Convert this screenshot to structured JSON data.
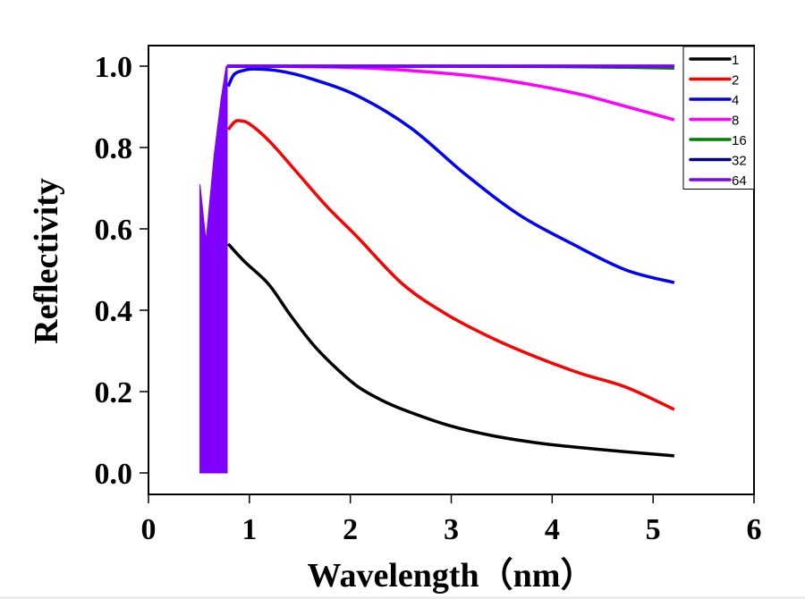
{
  "chart_data": {
    "type": "line",
    "title": "",
    "xlabel": "Wavelength（nm）",
    "ylabel": "Reflectivity",
    "xlim": [
      0,
      6
    ],
    "ylim": [
      -0.05,
      1.05
    ],
    "xticks": [
      0,
      1,
      2,
      3,
      4,
      5,
      6
    ],
    "xtick_labels": [
      "0",
      "1",
      "2",
      "3",
      "4",
      "5",
      "6"
    ],
    "yticks": [
      0.0,
      0.2,
      0.4,
      0.6,
      0.8,
      1.0
    ],
    "ytick_labels": [
      "0.0",
      "0.2",
      "0.4",
      "0.6",
      "0.8",
      "1.0"
    ],
    "grid": false,
    "legend_position": "top-right",
    "oscillation_region": {
      "description": "dense oscillating fill from 0 up to envelope for all series (topmost 64 visible)",
      "x_range": [
        0.51,
        0.78
      ],
      "envelope": [
        [
          0.51,
          0.71
        ],
        [
          0.57,
          0.57
        ],
        [
          0.65,
          0.78
        ],
        [
          0.72,
          0.92
        ],
        [
          0.77,
          1.0
        ],
        [
          0.78,
          1.0
        ]
      ],
      "color": "#8000ff"
    },
    "series": [
      {
        "name": "1",
        "color": "#000000",
        "x": [
          0.79,
          0.95,
          1.19,
          1.4,
          1.63,
          1.85,
          2.07,
          2.3,
          2.52,
          2.96,
          3.4,
          3.85,
          4.29,
          4.73,
          5.21
        ],
        "y": [
          0.563,
          0.52,
          0.464,
          0.39,
          0.316,
          0.26,
          0.213,
          0.18,
          0.156,
          0.118,
          0.092,
          0.074,
          0.062,
          0.052,
          0.042
        ]
      },
      {
        "name": "2",
        "color": "#ff0000",
        "x": [
          0.79,
          0.85,
          0.9,
          1.0,
          1.2,
          1.45,
          1.76,
          2.07,
          2.52,
          2.96,
          3.4,
          3.85,
          4.29,
          4.73,
          5.21
        ],
        "y": [
          0.844,
          0.862,
          0.866,
          0.858,
          0.815,
          0.745,
          0.657,
          0.58,
          0.464,
          0.389,
          0.332,
          0.284,
          0.244,
          0.211,
          0.156
        ]
      },
      {
        "name": "4",
        "color": "#0000ff",
        "x": [
          0.79,
          0.85,
          0.95,
          1.05,
          1.3,
          1.6,
          2.07,
          2.6,
          3.14,
          3.67,
          4.2,
          4.73,
          5.21
        ],
        "y": [
          0.95,
          0.98,
          0.99,
          0.993,
          0.988,
          0.97,
          0.927,
          0.848,
          0.734,
          0.635,
          0.563,
          0.499,
          0.468
        ]
      },
      {
        "name": "8",
        "color": "#ff00ff",
        "x": [
          0.78,
          1.5,
          2.2,
          2.96,
          3.4,
          3.85,
          4.29,
          4.73,
          5.21
        ],
        "y": [
          1.0,
          0.999,
          0.995,
          0.982,
          0.97,
          0.952,
          0.93,
          0.901,
          0.868
        ]
      },
      {
        "name": "16",
        "color": "#008000",
        "x": [
          0.78,
          2.0,
          3.0,
          4.0,
          4.8,
          5.21
        ],
        "y": [
          1.0,
          1.0,
          1.0,
          0.999,
          0.997,
          0.995
        ]
      },
      {
        "name": "32",
        "color": "#000080",
        "x": [
          0.78,
          2.0,
          3.0,
          4.0,
          5.21
        ],
        "y": [
          1.0,
          1.0,
          1.0,
          1.0,
          1.0
        ]
      },
      {
        "name": "64",
        "color": "#8000ff",
        "x": [
          0.78,
          2.0,
          3.0,
          4.0,
          5.21
        ],
        "y": [
          1.0,
          1.0,
          1.0,
          1.0,
          1.0
        ]
      }
    ]
  }
}
